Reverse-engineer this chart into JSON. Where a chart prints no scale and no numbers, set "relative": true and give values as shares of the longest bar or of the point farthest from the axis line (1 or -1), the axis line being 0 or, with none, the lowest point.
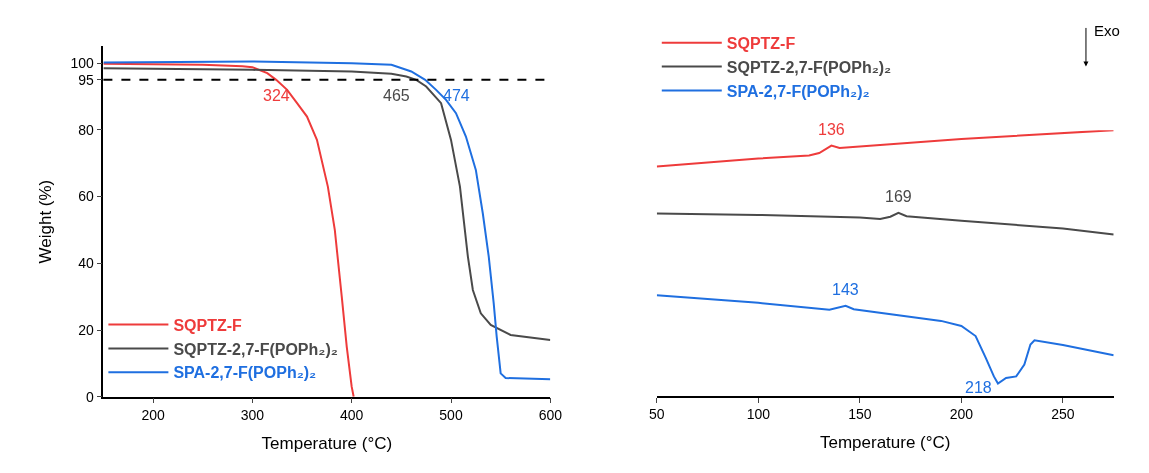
{
  "chart_data": [
    {
      "type": "line",
      "xlabel": "Temperature (°C)",
      "ylabel": "Weight (%)",
      "xlim": [
        150,
        600
      ],
      "ylim": [
        0,
        105
      ],
      "xticks": [
        200,
        300,
        400,
        500,
        600
      ],
      "yticks": [
        0,
        20,
        40,
        60,
        80,
        95,
        100
      ],
      "legend": "bottom left",
      "line_style": "solid",
      "series": [
        {
          "name": "SQPTZ-F",
          "color": "#ee3b3b",
          "x": [
            150,
            250,
            290,
            300,
            315,
            324,
            335,
            345,
            355,
            365,
            376,
            383,
            390,
            395,
            400,
            402
          ],
          "values": [
            99.8,
            99.5,
            99.1,
            98.8,
            97,
            95,
            92,
            88,
            84,
            77,
            63,
            50,
            30,
            15,
            3,
            0
          ]
        },
        {
          "name": "SQPTZ-2,7-F(POPh₂)₂",
          "color": "#4a4a4a",
          "x": [
            150,
            300,
            400,
            440,
            455,
            465,
            475,
            490,
            500,
            509,
            517,
            522,
            530,
            540,
            560,
            600
          ],
          "values": [
            98.5,
            98,
            97.5,
            96.8,
            96,
            95,
            93,
            88,
            77,
            63,
            42,
            32,
            25,
            21.5,
            18.5,
            17
          ]
        },
        {
          "name": "SPA-2,7-F(POPh₂)₂",
          "color": "#1f6fe0",
          "x": [
            150,
            300,
            400,
            440,
            460,
            474,
            485,
            495,
            505,
            515,
            525,
            532,
            538,
            543,
            546,
            550,
            555,
            600
          ],
          "values": [
            100.2,
            100.5,
            100,
            99.5,
            97.5,
            95,
            92,
            89,
            85,
            78,
            68,
            55,
            42,
            28,
            18,
            7,
            5.6,
            5.2
          ]
        }
      ],
      "ref_lines": [
        {
          "axis": "y",
          "value": 95,
          "color": "#000000",
          "line_style": "dashed"
        }
      ],
      "annotations": [
        {
          "text": "324",
          "x": 324,
          "y": 95
        },
        {
          "text": "465",
          "x": 465,
          "y": 95
        },
        {
          "text": "474",
          "x": 474,
          "y": 95
        }
      ]
    },
    {
      "type": "line",
      "xlabel": "Temperature (°C)",
      "relative": true,
      "xlim": [
        50,
        275
      ],
      "xticks": [
        50,
        100,
        150,
        200,
        250
      ],
      "legend": "top left",
      "line_style": "solid",
      "series": [
        {
          "name": "SQPTZ-F",
          "color": "#ee3b3b",
          "x": [
            50,
            100,
            125,
            130,
            136,
            140,
            200,
            275
          ],
          "values": [
            0.863,
            0.893,
            0.905,
            0.914,
            0.942,
            0.933,
            0.967,
            1
          ]
        },
        {
          "name": "SQPTZ-2,7-F(POPh₂)₂",
          "color": "#4a4a4a",
          "x": [
            50,
            100,
            150,
            160,
            165,
            169,
            173,
            200,
            250,
            275
          ],
          "values": [
            0.686,
            0.681,
            0.671,
            0.666,
            0.674,
            0.689,
            0.676,
            0.659,
            0.63,
            0.607
          ]
        },
        {
          "name": "SPA-2,7-F(POPh₂)₂",
          "color": "#1f6fe0",
          "x": [
            50,
            100,
            135,
            143,
            147,
            190,
            200,
            207,
            212,
            216,
            218,
            222,
            227,
            231,
            234,
            236,
            250,
            275
          ],
          "values": [
            0.379,
            0.35,
            0.324,
            0.339,
            0.326,
            0.282,
            0.263,
            0.225,
            0.143,
            0.073,
            0.046,
            0.067,
            0.073,
            0.118,
            0.193,
            0.209,
            0.191,
            0.153
          ]
        }
      ],
      "annotations": [
        {
          "text": "136",
          "x": 136,
          "y": 0.942
        },
        {
          "text": "169",
          "x": 169,
          "y": 0.689
        },
        {
          "text": "143",
          "x": 143,
          "y": 0.339
        },
        {
          "text": "218",
          "x": 218,
          "y": 0.046
        },
        "Exo"
      ]
    }
  ]
}
